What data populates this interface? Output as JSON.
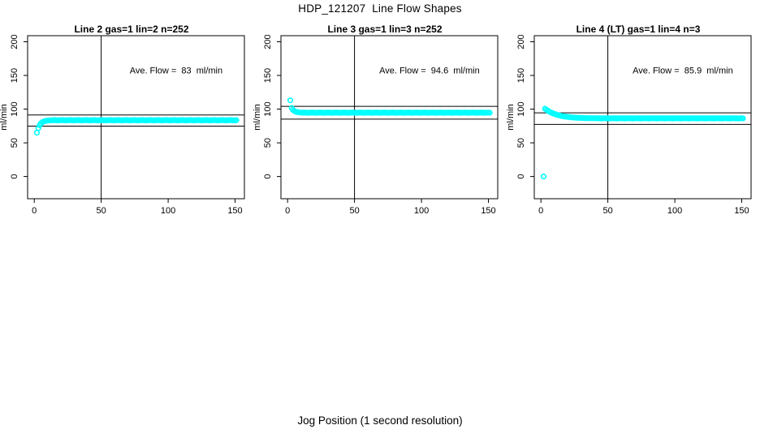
{
  "figure": {
    "title": "HDP_121207  Line Flow Shapes",
    "xlabel": "Jog Position (1 second resolution)"
  },
  "colors": {
    "points": "#00ffff",
    "axis": "#000000"
  },
  "chart_data": [
    {
      "type": "scatter",
      "title": "Line 2 gas=1 lin=2 n=252",
      "ylabel": "ml/min",
      "annotation": "Ave. Flow =  83  ml/min",
      "ave_flow": 83,
      "n": 252,
      "xticks": [
        0,
        50,
        100,
        150
      ],
      "yticks": [
        0,
        50,
        100,
        150,
        200
      ],
      "xlim": [
        -5,
        157
      ],
      "ylim": [
        -33,
        209
      ],
      "grid": false,
      "vline_x": 50,
      "hlines": [
        91.3,
        74.7
      ],
      "annotation_xy": [
        106,
        153
      ],
      "x_start": 2,
      "x_step": 1,
      "y": [
        65,
        71.8,
        76.1,
        78.8,
        80.5,
        81.6,
        82.3,
        82.7,
        83,
        83.2,
        83.3,
        83.4,
        83.5,
        83.8,
        83.3,
        83.6,
        83.2,
        83.7,
        83.5,
        83.8,
        83.3,
        83.6,
        83.2,
        83.7,
        83.5,
        83.8,
        83.3,
        83.6,
        83.2,
        83.7,
        83.5,
        83.8,
        83.3,
        83.6,
        83.2,
        83.7,
        83.5,
        83.8,
        83.3,
        83.6,
        83.2,
        83.7,
        83.5,
        83.8,
        83.3,
        83.6,
        83.2,
        83.7,
        83.5,
        83.8,
        83.3,
        83.6,
        83.2,
        83.7,
        83.5,
        83.8,
        83.3,
        83.6,
        83.2,
        83.7,
        83.5,
        83.8,
        83.3,
        83.6,
        83.2,
        83.7,
        83.5,
        83.8,
        83.3,
        83.6,
        83.2,
        83.7,
        83.5,
        83.8,
        83.3,
        83.6,
        83.2,
        83.7,
        83.5,
        83.8,
        83.3,
        83.6,
        83.2,
        83.7,
        83.5,
        83.8,
        83.3,
        83.6,
        83.2,
        83.7,
        83.5,
        83.8,
        83.3,
        83.6,
        83.2,
        83.7,
        83.5,
        83.8,
        83.3,
        83.6,
        83.2,
        83.7,
        83.5,
        83.8,
        83.3,
        83.6,
        83.2,
        83.7,
        83.5,
        83.8,
        83.3,
        83.6,
        83.2,
        83.7,
        83.5,
        83.8,
        83.3,
        83.6,
        83.2,
        83.7,
        83.5,
        83.8,
        83.3,
        83.6,
        83.2,
        83.7,
        83.5,
        83.8,
        83.3,
        83.6,
        83.2,
        83.7,
        83.5,
        83.8,
        83.3,
        83.6,
        83.2,
        83.7,
        83.5,
        83.8,
        83.3,
        83.6,
        83.2,
        83.7,
        83.5,
        83.8,
        83.3,
        83.6,
        83.2,
        83.7
      ],
      "outliers": []
    },
    {
      "type": "scatter",
      "title": "Line 3 gas=1 lin=3 n=252",
      "ylabel": "ml/min",
      "annotation": "Ave. Flow =  94.6  ml/min",
      "ave_flow": 94.6,
      "n": 252,
      "xticks": [
        0,
        50,
        100,
        150
      ],
      "yticks": [
        0,
        50,
        100,
        150,
        200
      ],
      "xlim": [
        -5,
        157
      ],
      "ylim": [
        -33,
        209
      ],
      "grid": false,
      "vline_x": 50,
      "hlines": [
        104.1,
        85.1
      ],
      "annotation_xy": [
        106,
        153
      ],
      "x_start": 3,
      "x_step": 1,
      "y": [
        101.7,
        98.9,
        97.3,
        96.3,
        95.6,
        95.3,
        95,
        94.9,
        94.8,
        94.7,
        95,
        94.5,
        94.8,
        94.4,
        94.9,
        94.7,
        95,
        94.5,
        94.8,
        94.4,
        94.9,
        94.7,
        95,
        94.5,
        94.8,
        94.4,
        94.9,
        94.7,
        95,
        94.5,
        94.8,
        94.4,
        94.9,
        94.7,
        95,
        94.5,
        94.8,
        94.4,
        94.9,
        94.7,
        95,
        94.5,
        94.8,
        94.4,
        94.9,
        94.7,
        95,
        94.5,
        94.8,
        94.4,
        94.9,
        94.7,
        95,
        94.5,
        94.8,
        94.4,
        94.9,
        94.7,
        95,
        94.5,
        94.8,
        94.4,
        94.9,
        94.7,
        95,
        94.5,
        94.8,
        94.4,
        94.9,
        94.7,
        95,
        94.5,
        94.8,
        94.4,
        94.9,
        94.7,
        95,
        94.5,
        94.8,
        94.4,
        94.9,
        94.7,
        95,
        94.5,
        94.8,
        94.4,
        94.9,
        94.7,
        95,
        94.5,
        94.8,
        94.4,
        94.9,
        94.7,
        95,
        94.5,
        94.8,
        94.4,
        94.9,
        94.7,
        95,
        94.5,
        94.8,
        94.4,
        94.9,
        94.7,
        95,
        94.5,
        94.8,
        94.4,
        94.9,
        94.7,
        95,
        94.5,
        94.8,
        94.4,
        94.9,
        94.7,
        95,
        94.5,
        94.8,
        94.4,
        94.9,
        94.7,
        95,
        94.5,
        94.8,
        94.4,
        94.9,
        94.7,
        95,
        94.5,
        94.8,
        94.4,
        94.9,
        94.7,
        95,
        94.5,
        94.8,
        94.4,
        94.9,
        94.7,
        95,
        94.5,
        94.8,
        94.4,
        94.9,
        94.7,
        94.6
      ],
      "outliers": [
        [
          2,
          113
        ]
      ]
    },
    {
      "type": "scatter",
      "title": "Line 4 (LT) gas=1 lin=4 n=3",
      "ylabel": "ml/min",
      "annotation": "Ave. Flow =  85.9  ml/min",
      "ave_flow": 85.9,
      "n": 3,
      "xticks": [
        0,
        50,
        100,
        150
      ],
      "yticks": [
        0,
        50,
        100,
        150,
        200
      ],
      "xlim": [
        -5,
        157
      ],
      "ylim": [
        -33,
        209
      ],
      "grid": false,
      "vline_x": 50,
      "hlines": [
        94.5,
        77.3
      ],
      "annotation_xy": [
        106,
        153
      ],
      "x_start": 3,
      "x_step": 1,
      "y": [
        100.7,
        99.2,
        97.8,
        96.6,
        95.5,
        94.5,
        93.6,
        92.9,
        92.2,
        91.5,
        91,
        90.5,
        90,
        89.6,
        89.3,
        88.9,
        88.7,
        88.4,
        88.2,
        88,
        87.8,
        87.6,
        87.5,
        87.3,
        87.2,
        87.1,
        87,
        86.9,
        86.9,
        86.8,
        86.7,
        86.7,
        86.6,
        86.6,
        86.5,
        86.5,
        86.5,
        86.4,
        86.4,
        86.6,
        86.2,
        86.5,
        86.1,
        86.3,
        86.4,
        86.6,
        86.2,
        86.5,
        86.1,
        86.3,
        86.4,
        86.6,
        86.2,
        86.5,
        86.1,
        86.3,
        86.4,
        86.6,
        86.2,
        86.5,
        86.1,
        86.3,
        86.4,
        86.6,
        86.2,
        86.5,
        86.1,
        86.3,
        86.4,
        86.6,
        86.2,
        86.5,
        86.1,
        86.3,
        86.4,
        86.6,
        86.2,
        86.5,
        86.1,
        86.3,
        86.4,
        86.6,
        86.2,
        86.5,
        86.1,
        86.3,
        86.4,
        86.6,
        86.2,
        86.5,
        86.1,
        86.3,
        86.4,
        86.6,
        86.2,
        86.5,
        86.1,
        86.3,
        86.4,
        86.6,
        86.2,
        86.5,
        86.1,
        86.3,
        86.4,
        86.6,
        86.2,
        86.5,
        86.1,
        86.3,
        86.4,
        86.6,
        86.2,
        86.5,
        86.1,
        86.3,
        86.4,
        86.6,
        86.2,
        86.5,
        86.1,
        86.3,
        86.4,
        86.6,
        86.2,
        86.5,
        86.1,
        86.3,
        86.4,
        86.6,
        86.2,
        86.5,
        86.1,
        86.3,
        86.4,
        86.6,
        86.2,
        86.5,
        86.1,
        86.3,
        86.4,
        86.6,
        86.2,
        86.5,
        86.1,
        86.3,
        86.4,
        86.6,
        86.2
      ],
      "outliers": [
        [
          2,
          0
        ]
      ]
    }
  ]
}
